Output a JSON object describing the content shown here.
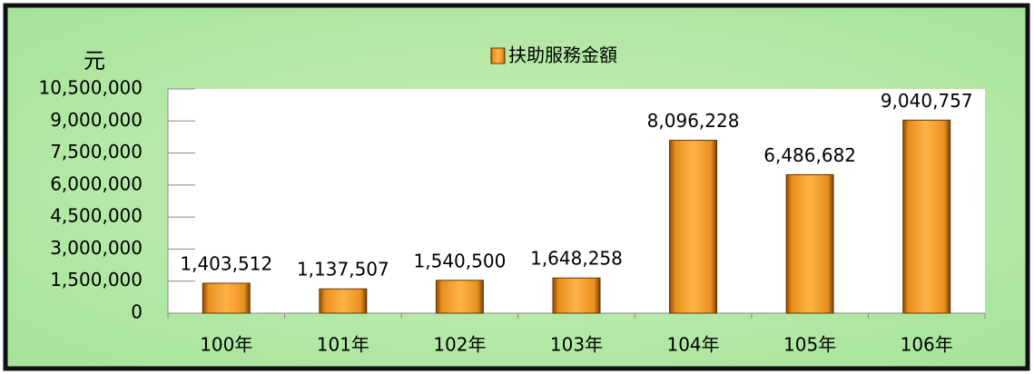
{
  "chart_data": {
    "type": "bar",
    "y_label": "元",
    "categories": [
      "100年",
      "101年",
      "102年",
      "103年",
      "104年",
      "105年",
      "106年"
    ],
    "series": [
      {
        "name": "扶助服務金額",
        "color": "#f5a030",
        "values": [
          1403512,
          1137507,
          1540500,
          1648258,
          8096228,
          6486682,
          9040757
        ],
        "value_labels": [
          "1,403,512",
          "1,137,507",
          "1,540,500",
          "1,648,258",
          "8,096,228",
          "6,486,682",
          "9,040,757"
        ]
      }
    ],
    "ylim": [
      0,
      10500000
    ],
    "yticks": [
      0,
      {
        "value": 1500000,
        "label": "1,500,000"
      },
      {
        "value": 3000000,
        "label": "3,000,000"
      },
      {
        "value": 4500000,
        "label": "4,500,000"
      },
      {
        "value": 6000000,
        "label": "6,000,000"
      },
      {
        "value": 7500000,
        "label": "7,500,000"
      },
      {
        "value": 9000000,
        "label": "9,000,000"
      },
      {
        "value": 10500000,
        "label": "10,500,000"
      }
    ],
    "grid": false
  }
}
